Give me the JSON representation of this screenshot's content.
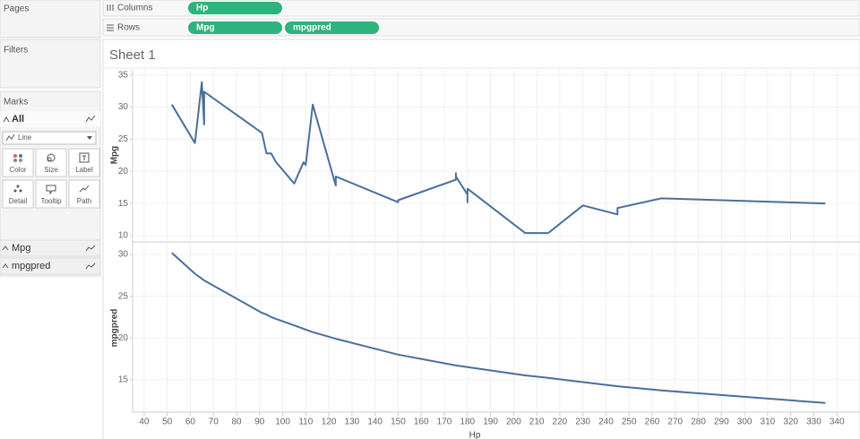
{
  "ui": {
    "pages": "Pages",
    "filters": "Filters",
    "marks": "Marks",
    "marks_all": "All",
    "mark_type": "Line",
    "mark_buttons": [
      "Color",
      "Size",
      "Label",
      "Detail",
      "Tooltip",
      "Path"
    ],
    "mark_cards": [
      "Mpg",
      "mpgpred"
    ],
    "columns_label": "Columns",
    "rows_label": "Rows",
    "columns_pills": [
      "Hp"
    ],
    "rows_pills": [
      "Mpg",
      "mpgpred"
    ],
    "sheet_title": "Sheet 1"
  },
  "chart_data": [
    {
      "type": "line",
      "y_label": "Mpg",
      "color": "#4a6f9b",
      "x": [
        52,
        62,
        65,
        66,
        66,
        91,
        93,
        95,
        97,
        105,
        109,
        110,
        113,
        123,
        123,
        150,
        150,
        175,
        175,
        175,
        180,
        180,
        180,
        205,
        215,
        230,
        245,
        245,
        264,
        335
      ],
      "values": [
        30.4,
        24.4,
        33.9,
        27.3,
        32.4,
        26,
        22.8,
        22.8,
        21.5,
        18.1,
        21.4,
        21,
        30.4,
        17.8,
        19.2,
        15.2,
        15.5,
        18.7,
        19.7,
        19.2,
        16.4,
        15.2,
        17.3,
        10.4,
        10.4,
        14.7,
        13.3,
        14.3,
        15.8,
        15
      ],
      "xlim": [
        35,
        350
      ],
      "ylim": [
        9.3,
        35.8
      ],
      "yticks": [
        10,
        15,
        20,
        25,
        30,
        35
      ],
      "grid": true
    },
    {
      "type": "line",
      "y_label": "mpgpred",
      "x_label": "Hp",
      "color": "#4a6f9b",
      "x": [
        52,
        62,
        65,
        66,
        91,
        93,
        95,
        97,
        105,
        109,
        110,
        113,
        123,
        150,
        175,
        180,
        205,
        215,
        230,
        245,
        264,
        335
      ],
      "values": [
        30.2,
        27.7,
        27.1,
        26.9,
        23,
        22.8,
        22.5,
        22.3,
        21.5,
        21.1,
        21,
        20.7,
        19.9,
        18,
        16.7,
        16.5,
        15.5,
        15.2,
        14.7,
        14.2,
        13.7,
        12.2
      ],
      "xlim": [
        35,
        350
      ],
      "xticks": [
        40,
        50,
        60,
        70,
        80,
        90,
        100,
        110,
        120,
        130,
        140,
        150,
        160,
        170,
        180,
        190,
        200,
        210,
        220,
        230,
        240,
        250,
        260,
        270,
        280,
        290,
        300,
        310,
        320,
        330,
        340
      ],
      "ylim": [
        11.1,
        31.3
      ],
      "yticks": [
        15,
        20,
        25,
        30
      ],
      "grid": true
    }
  ]
}
